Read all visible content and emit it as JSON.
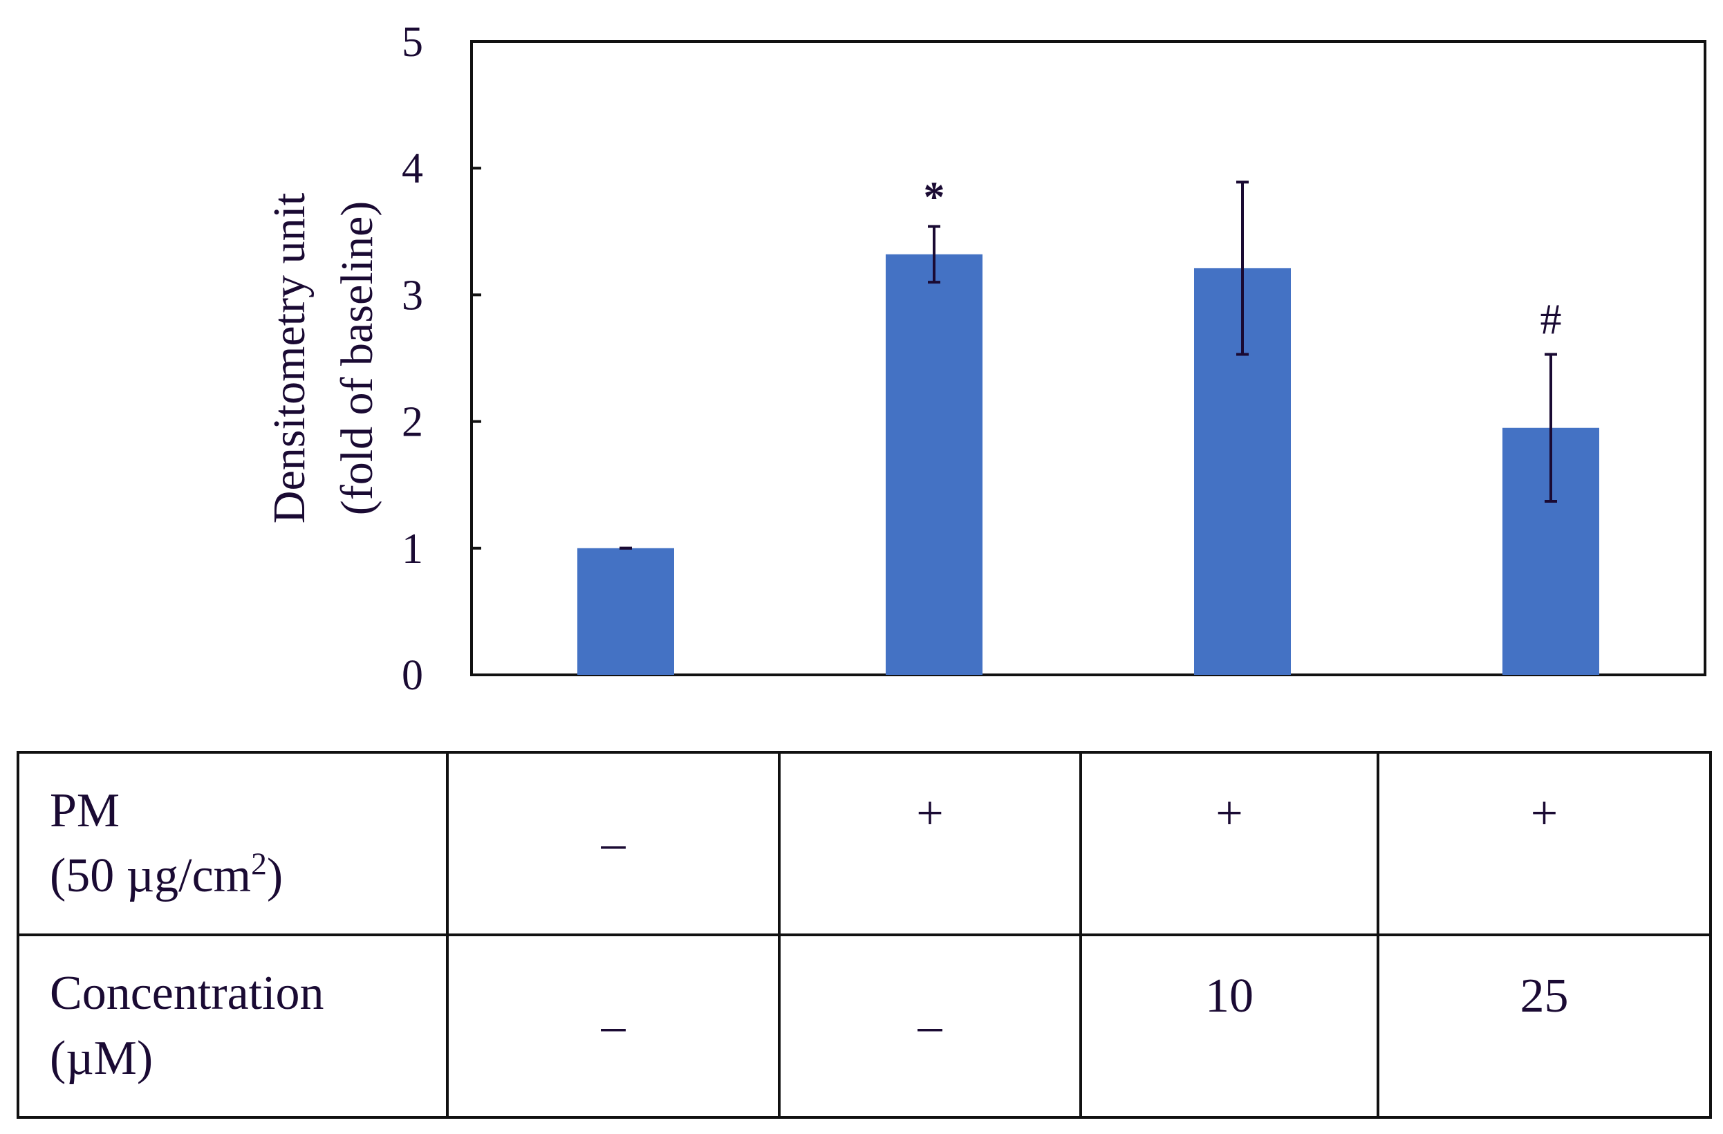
{
  "chart_data": {
    "type": "bar",
    "title": "",
    "xlabel": "",
    "ylabel_line1": "Densitometry unit",
    "ylabel_line2": "(fold of baseline)",
    "ylim": [
      0,
      5
    ],
    "yticks": [
      "0",
      "1",
      "2",
      "3",
      "4",
      "5"
    ],
    "bar_color": "#4472c4",
    "values": [
      1.0,
      3.32,
      3.21,
      1.95
    ],
    "errors": [
      0.0,
      0.22,
      0.68,
      0.58
    ],
    "annotations": [
      "",
      "*",
      "",
      "#"
    ],
    "grid": false
  },
  "table": {
    "rows": [
      {
        "label_line1": "PM",
        "label_line2_pre": "(50 µg/cm",
        "label_line2_sup": "2",
        "label_line2_post": ")",
        "cells": [
          "–",
          "+",
          "+",
          "+"
        ]
      },
      {
        "label_line1": "Concentration",
        "label_line2": "(µM)",
        "cells": [
          "–",
          "–",
          "10",
          "25"
        ]
      }
    ]
  }
}
